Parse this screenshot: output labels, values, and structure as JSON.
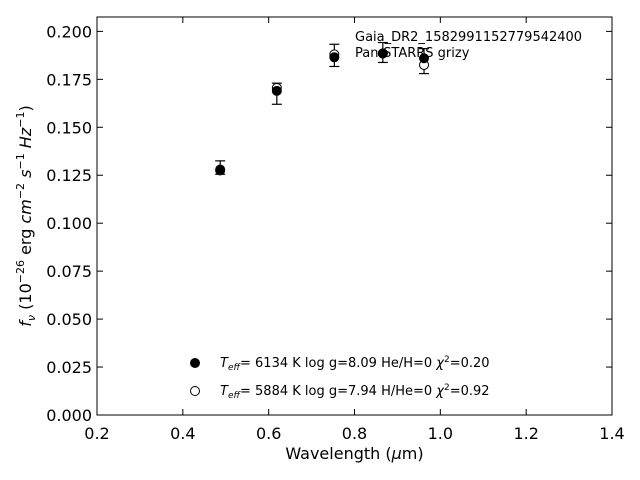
{
  "chart_data": {
    "type": "scatter",
    "annotations": [
      "Gaia_DR2_1582991152779542400",
      "Pan-STARRS grizy"
    ],
    "xlabel": "Wavelength (μm)",
    "ylabel": "fν (10⁻²⁶ erg cm⁻² s⁻¹ Hz⁻¹)",
    "xlim": [
      0.2,
      1.4
    ],
    "ylim": [
      0.0,
      0.2075
    ],
    "xticks": [
      "0.2",
      "0.4",
      "0.6",
      "0.8",
      "1.0",
      "1.2",
      "1.4"
    ],
    "yticks": [
      "0.000",
      "0.025",
      "0.050",
      "0.075",
      "0.100",
      "0.125",
      "0.150",
      "0.175",
      "0.200"
    ],
    "grid": false,
    "legend_position": "bottom-center",
    "observed": {
      "x": [
        0.487,
        0.619,
        0.753,
        0.866,
        0.962
      ],
      "y": [
        0.129,
        0.1675,
        0.1875,
        0.189,
        0.1845
      ],
      "err": [
        0.0035,
        0.0055,
        0.0058,
        0.0052,
        0.0065
      ]
    },
    "series": [
      {
        "marker": "filled",
        "legend": "T_eff=  6134 K  log g=8.09  He/H=0  χ²=0.20",
        "x": [
          0.487,
          0.619,
          0.753,
          0.866,
          0.962
        ],
        "y": [
          0.128,
          0.169,
          0.1865,
          0.1885,
          0.186
        ]
      },
      {
        "marker": "open",
        "legend": "T_eff=  5884 K  log g=7.94  H/He=0  χ²=0.92",
        "x": [
          0.487,
          0.619,
          0.753,
          0.866,
          0.962
        ],
        "y": [
          0.1275,
          0.1705,
          0.188,
          0.1885,
          0.1825
        ]
      }
    ]
  }
}
